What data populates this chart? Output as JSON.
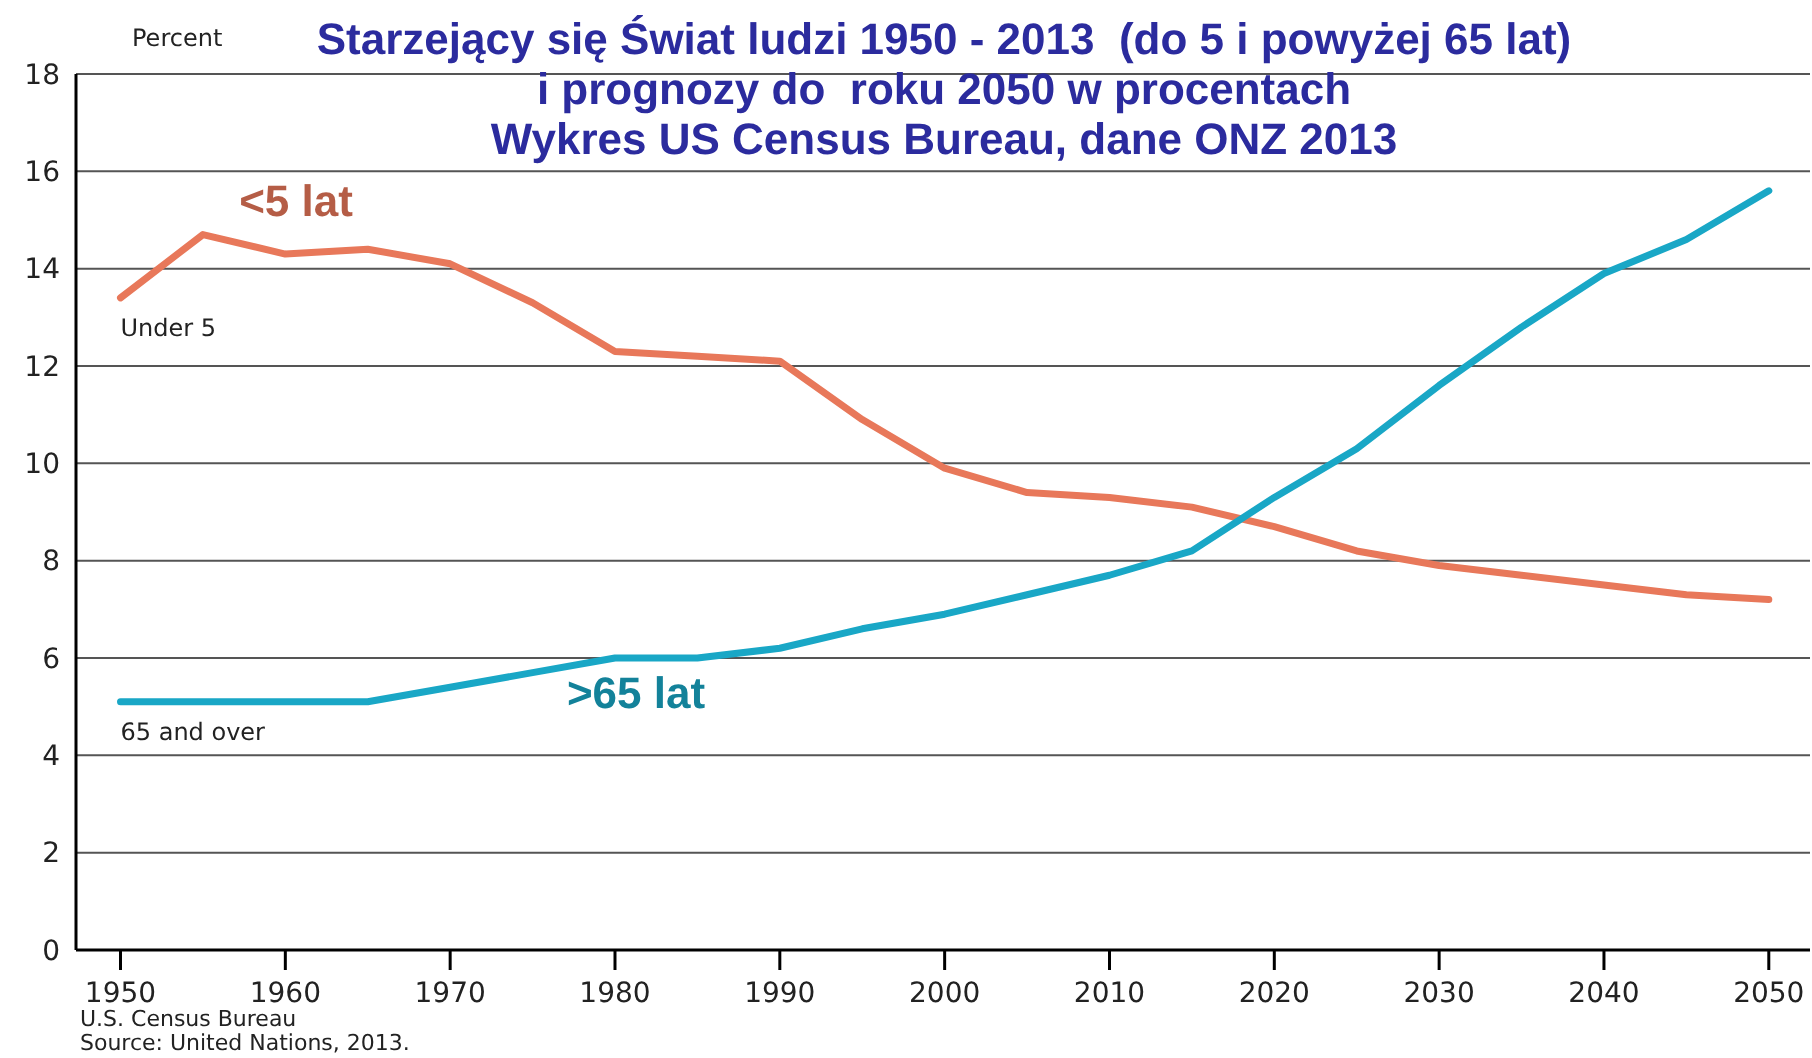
{
  "chart_data": {
    "type": "line",
    "title": "Starzejący się Świat ludzi 1950 - 2013  (do 5 i powyżej 65 lat)\ni prognozy do  roku 2050 w procentach\nWykres US Census Bureau, dane ONZ 2013",
    "ylabel": "Percent",
    "x": [
      1950,
      1955,
      1960,
      1965,
      1970,
      1975,
      1980,
      1985,
      1990,
      1995,
      2000,
      2005,
      2010,
      2015,
      2020,
      2025,
      2030,
      2035,
      2040,
      2045,
      2050
    ],
    "series": [
      {
        "name": "Under 5",
        "color": "#e8785a",
        "values": [
          13.4,
          14.7,
          14.3,
          14.4,
          14.1,
          13.3,
          12.3,
          12.2,
          12.1,
          10.9,
          9.9,
          9.4,
          9.3,
          9.1,
          8.7,
          8.2,
          7.9,
          7.7,
          7.5,
          7.3,
          7.2
        ]
      },
      {
        "name": "65 and over",
        "color": "#19a7c6",
        "values": [
          5.1,
          5.1,
          5.1,
          5.1,
          5.4,
          5.7,
          6.0,
          6.0,
          6.2,
          6.6,
          6.9,
          7.3,
          7.7,
          8.2,
          9.3,
          10.3,
          11.6,
          12.8,
          13.9,
          14.6,
          15.6
        ]
      }
    ],
    "annotations": [
      "<5 lat",
      ">65 lat",
      "U.S. Census Bureau",
      "Source: United Nations, 2013."
    ],
    "xlim": [
      1947.3,
      2052.5
    ],
    "ylim": [
      0,
      18
    ],
    "xticks": [
      1950,
      1960,
      1970,
      1980,
      1990,
      2000,
      2010,
      2020,
      2030,
      2040,
      2050
    ],
    "yticks": [
      0,
      2,
      4,
      6,
      8,
      10,
      12,
      14,
      16,
      18
    ],
    "grid": "y",
    "marker": "none",
    "line_style": "solid"
  }
}
